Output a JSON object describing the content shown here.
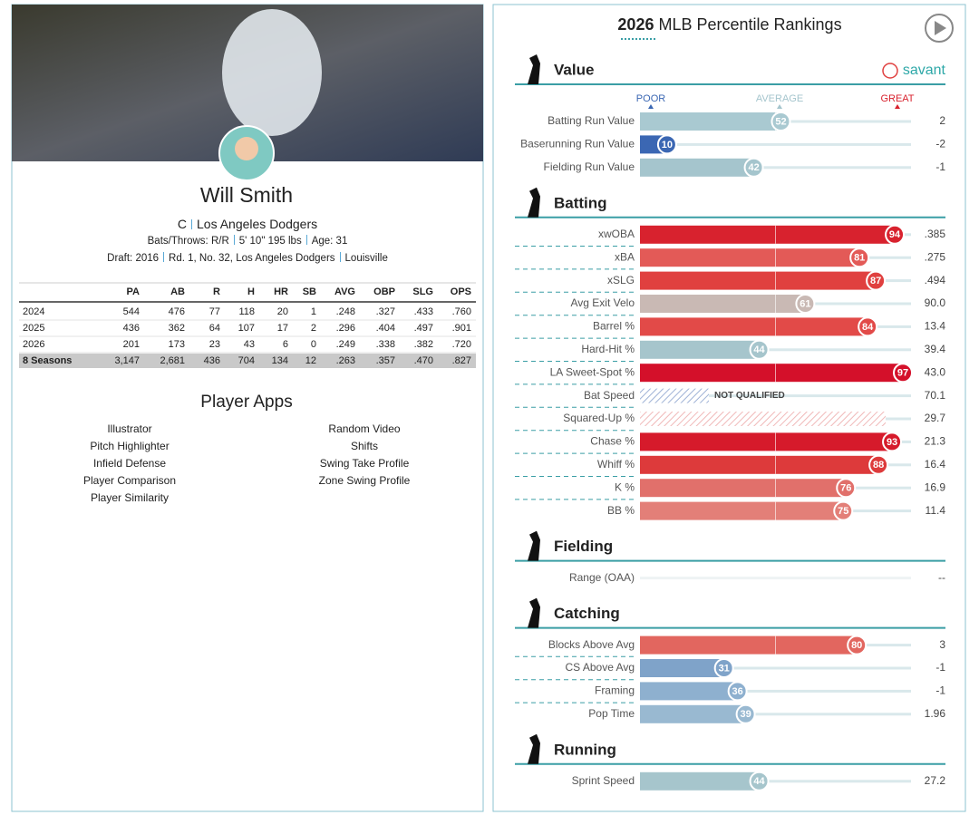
{
  "player": {
    "name": "Will Smith",
    "position": "C",
    "team": "Los Angeles Dodgers",
    "bats_throws": "Bats/Throws: R/R",
    "size": "5' 10\" 195 lbs",
    "age": "Age: 31",
    "draft": "Draft: 2016",
    "draft_pick": "Rd. 1, No. 32, Los Angeles Dodgers",
    "school": "Louisville"
  },
  "stats": {
    "columns": [
      "PA",
      "AB",
      "R",
      "H",
      "HR",
      "SB",
      "AVG",
      "OBP",
      "SLG",
      "OPS"
    ],
    "rows": [
      [
        "2024",
        "544",
        "476",
        "77",
        "118",
        "20",
        "1",
        ".248",
        ".327",
        ".433",
        ".760"
      ],
      [
        "2025",
        "436",
        "362",
        "64",
        "107",
        "17",
        "2",
        ".296",
        ".404",
        ".497",
        ".901"
      ],
      [
        "2026",
        "201",
        "173",
        "23",
        "43",
        "6",
        "0",
        ".249",
        ".338",
        ".382",
        ".720"
      ],
      [
        "8 Seasons",
        "3,147",
        "2,681",
        "436",
        "704",
        "134",
        "12",
        ".263",
        ".357",
        ".470",
        ".827"
      ]
    ]
  },
  "apps": {
    "title": "Player Apps",
    "left": [
      "Illustrator",
      "Pitch Highlighter",
      "Infield Defense",
      "Player Comparison",
      "Player Similarity"
    ],
    "right": [
      "Random Video",
      "Shifts",
      "Swing Take Profile",
      "Zone Swing Profile"
    ]
  },
  "header": {
    "year": "2026",
    "title": "MLB Percentile Rankings",
    "brand": "savant",
    "scale": [
      "POOR",
      "AVERAGE",
      "GREAT"
    ]
  },
  "sections": [
    {
      "name": "Value",
      "metrics": [
        {
          "name": "Batting Run Value",
          "percentile": 52,
          "value": "2",
          "color": "#a9c9d1"
        },
        {
          "name": "Baserunning Run Value",
          "percentile": 10,
          "value": "-2",
          "color": "#3b67b3"
        },
        {
          "name": "Fielding Run Value",
          "percentile": 42,
          "value": "-1",
          "color": "#a5c5cd"
        }
      ]
    },
    {
      "name": "Batting",
      "metrics": [
        {
          "name": "xwOBA",
          "percentile": 94,
          "value": ".385",
          "color": "#d8222e"
        },
        {
          "name": "xBA",
          "percentile": 81,
          "value": ".275",
          "color": "#e35a57"
        },
        {
          "name": "xSLG",
          "percentile": 87,
          "value": ".494",
          "color": "#e0403f"
        },
        {
          "name": "Avg Exit Velo",
          "percentile": 61,
          "value": "90.0",
          "color": "#c9b9b4"
        },
        {
          "name": "Barrel %",
          "percentile": 84,
          "value": "13.4",
          "color": "#e24a48"
        },
        {
          "name": "Hard-Hit %",
          "percentile": 44,
          "value": "39.4",
          "color": "#a6c5cc"
        },
        {
          "name": "LA Sweet-Spot %",
          "percentile": 97,
          "value": "43.0",
          "color": "#d4102a"
        },
        {
          "name": "Bat Speed",
          "percentile": null,
          "note": "NOT QUALIFIED",
          "value": "70.1",
          "color": "#9fb2d6"
        },
        {
          "name": "Squared-Up %",
          "percentile": null,
          "value": "29.7",
          "color": "#f0b8b8"
        },
        {
          "name": "Chase %",
          "percentile": 93,
          "value": "21.3",
          "color": "#d61a2b"
        },
        {
          "name": "Whiff %",
          "percentile": 88,
          "value": "16.4",
          "color": "#dd3a3b"
        },
        {
          "name": "K %",
          "percentile": 76,
          "value": "16.9",
          "color": "#e1706b"
        },
        {
          "name": "BB %",
          "percentile": 75,
          "value": "11.4",
          "color": "#e37f78"
        }
      ]
    },
    {
      "name": "Fielding",
      "metrics": [
        {
          "name": "Range (OAA)",
          "percentile": null,
          "value": "--"
        }
      ]
    },
    {
      "name": "Catching",
      "metrics": [
        {
          "name": "Blocks Above Avg",
          "percentile": 80,
          "value": "3",
          "color": "#e2665f"
        },
        {
          "name": "CS Above Avg",
          "percentile": 31,
          "value": "-1",
          "color": "#7fa3c9"
        },
        {
          "name": "Framing",
          "percentile": 36,
          "value": "-1",
          "color": "#8eb0cf"
        },
        {
          "name": "Pop Time",
          "percentile": 39,
          "value": "1.96",
          "color": "#99b9d1"
        }
      ]
    },
    {
      "name": "Running",
      "metrics": [
        {
          "name": "Sprint Speed",
          "percentile": 44,
          "value": "27.2",
          "color": "#a6c5cc"
        }
      ]
    }
  ]
}
